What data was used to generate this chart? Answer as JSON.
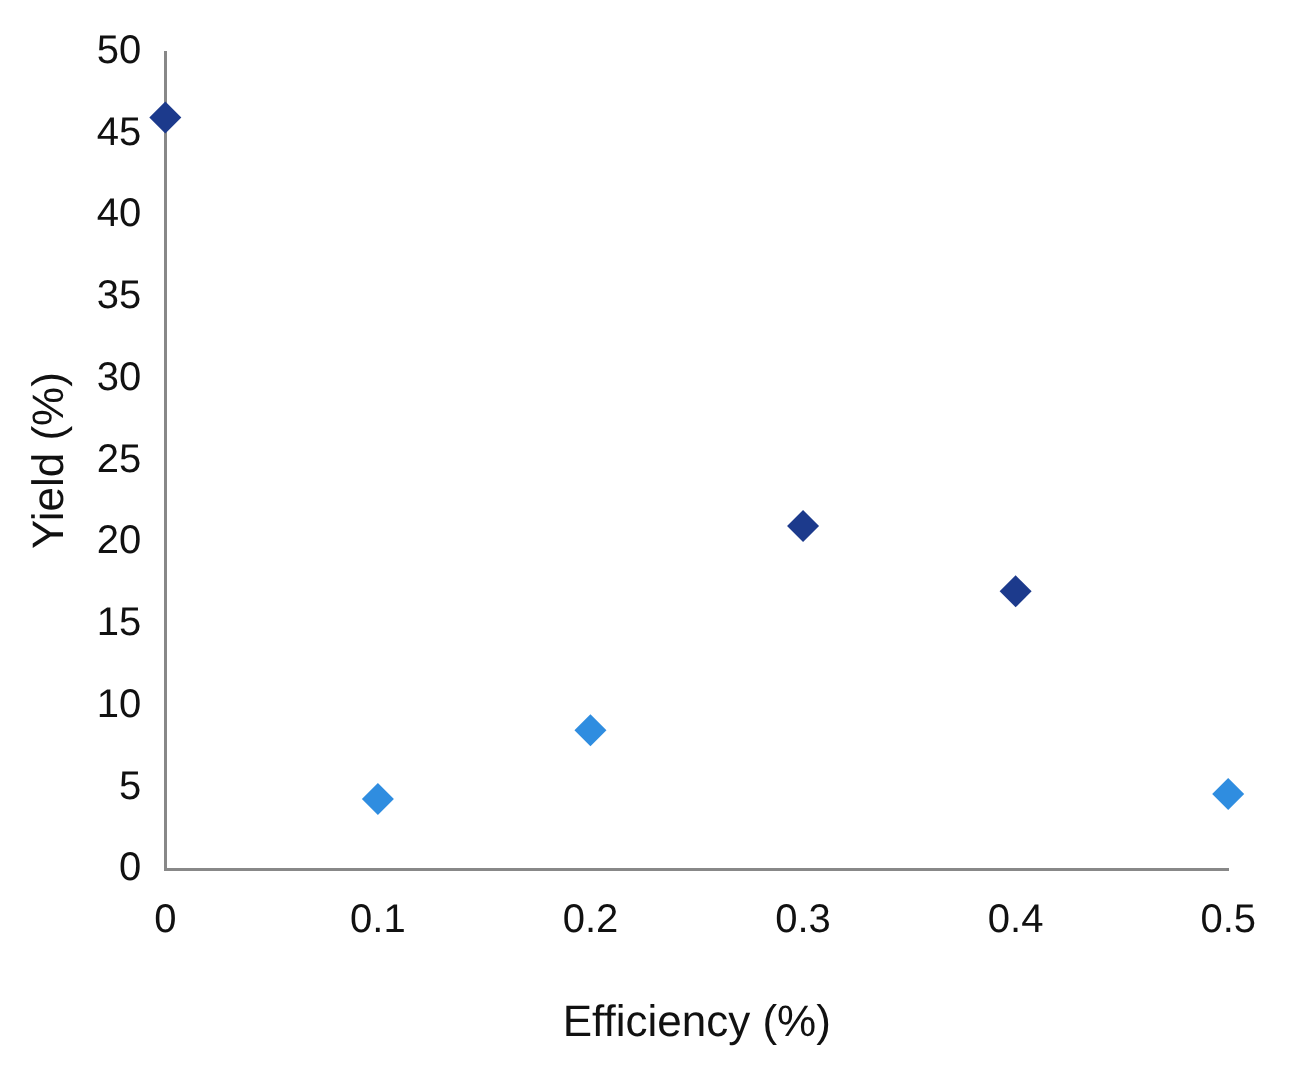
{
  "chart_data": {
    "type": "scatter",
    "xlabel": "Efficiency (%)",
    "ylabel": "Yield (%)",
    "series": [
      {
        "color": "#1c3a8c",
        "x": [
          0,
          0.3,
          0.4
        ],
        "values": [
          46,
          21,
          17
        ]
      },
      {
        "color": "#2f8de0",
        "x": [
          0.1,
          0.2,
          0.5
        ],
        "values": [
          4.3,
          8.5,
          4.6
        ]
      }
    ],
    "xlim": [
      0,
      0.5
    ],
    "xticks": [
      0,
      0.1,
      0.2,
      0.3,
      0.4,
      0.5
    ],
    "ylim": [
      0,
      50
    ],
    "yticks": [
      0,
      5,
      10,
      15,
      20,
      25,
      30,
      35,
      40,
      45,
      50
    ],
    "grid": false,
    "legend": false,
    "marker": "diamond"
  }
}
